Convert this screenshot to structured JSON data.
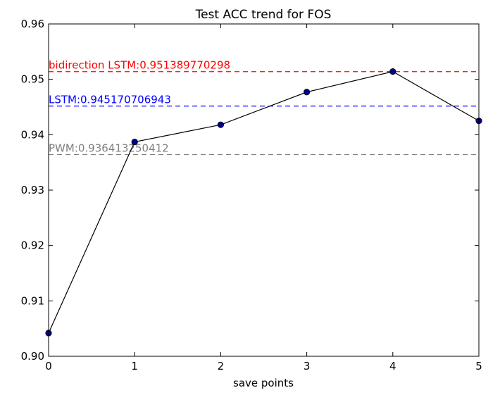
{
  "chart_data": {
    "type": "line",
    "title": "Test ACC trend for FOS",
    "xlabel": "save points",
    "ylabel": "",
    "xlim": [
      0,
      5
    ],
    "ylim": [
      0.9,
      0.96
    ],
    "xticks": [
      "0",
      "1",
      "2",
      "3",
      "4",
      "5"
    ],
    "yticks": [
      "0.90",
      "0.91",
      "0.92",
      "0.93",
      "0.94",
      "0.95",
      "0.96"
    ],
    "grid": false,
    "series": [
      {
        "x": [
          0,
          1,
          2,
          3,
          4,
          5
        ],
        "values": [
          0.9042,
          0.9387,
          0.9418,
          0.9477,
          0.9514,
          0.9425
        ],
        "color": "#000000",
        "marker_color": "#00008b"
      }
    ],
    "reference_lines": [
      {
        "label": "bidirection LSTM:0.951389770298",
        "y": 0.951389770298,
        "color": "#ff0000",
        "style": "dashed"
      },
      {
        "label": "LSTM:0.945170706943",
        "y": 0.945170706943,
        "color": "#0000ff",
        "style": "dashed"
      },
      {
        "label": "PWM:0.936413250412",
        "y": 0.936413250412,
        "color": "#808080",
        "style": "dashed"
      }
    ]
  }
}
